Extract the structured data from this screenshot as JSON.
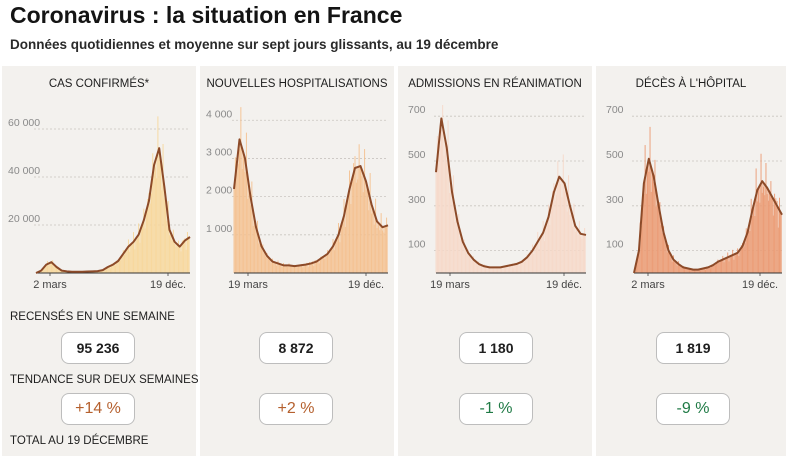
{
  "title": "Coronavirus : la situation en France",
  "subtitle": "Données quotidiennes et moyenne sur sept jours glissants, au 19 décembre",
  "row_labels": {
    "weekly": "RECENSÉS EN UNE SEMAINE",
    "trend": "TENDANCE SUR DEUX SEMAINES",
    "total": "TOTAL AU 19  DÉCEMBRE"
  },
  "colors": {
    "line": "#8c4a28",
    "up": "#b5602e",
    "down": "#1f7a45",
    "panel_bg": "#f3f1ee"
  },
  "panels": [
    {
      "title": "CAS CONFIRMÉS*",
      "weekly": "95 236",
      "trend": "+14 %",
      "trend_dir": "up"
    },
    {
      "title": "NOUVELLES HOSPITALISATIONS",
      "weekly": "8 872",
      "trend": "+2 %",
      "trend_dir": "up"
    },
    {
      "title": "ADMISSIONS EN RÉANIMATION",
      "weekly": "1 180",
      "trend": "-1 %",
      "trend_dir": "down"
    },
    {
      "title": "DÉCÈS À L'HÔPITAL",
      "weekly": "1 819",
      "trend": "-9 %",
      "trend_dir": "down"
    }
  ],
  "chart_data": [
    {
      "type": "area",
      "title": "CAS CONFIRMÉS*",
      "x_ticks": [
        "2 mars",
        "19 déc."
      ],
      "y_ticks": [
        "20 000",
        "40 000",
        "60 000"
      ],
      "ylim": [
        0,
        70000
      ],
      "fill_color": "#f7d79b",
      "series": [
        {
          "values": [
            0,
            1000,
            3500,
            4500,
            2500,
            1000,
            700,
            500,
            500,
            500,
            600,
            700,
            800,
            1200,
            2500,
            3500,
            5000,
            8000,
            11000,
            13000,
            16000,
            22000,
            30000,
            45000,
            52000,
            36000,
            18000,
            13000,
            11000,
            13500,
            15000
          ]
        }
      ]
    },
    {
      "type": "area",
      "title": "NOUVELLES HOSPITALISATIONS",
      "x_ticks": [
        "19 mars",
        "19 déc."
      ],
      "y_ticks": [
        "1 000",
        "2 000",
        "3 000",
        "4 000"
      ],
      "ylim": [
        0,
        4400
      ],
      "fill_color": "#f4c08e",
      "series": [
        {
          "values": [
            2200,
            3500,
            3000,
            2000,
            1200,
            700,
            450,
            300,
            250,
            200,
            200,
            180,
            200,
            220,
            250,
            300,
            400,
            500,
            700,
            1000,
            1500,
            2200,
            2750,
            2800,
            2400,
            1800,
            1350,
            1200,
            1250
          ]
        }
      ]
    },
    {
      "type": "area",
      "title": "ADMISSIONS EN RÉANIMATION",
      "x_ticks": [
        "19 mars",
        "19 déc."
      ],
      "y_ticks": [
        "100",
        "300",
        "500",
        "700"
      ],
      "ylim": [
        0,
        750
      ],
      "fill_color": "#f6d8c8",
      "series": [
        {
          "values": [
            450,
            690,
            560,
            360,
            230,
            140,
            90,
            60,
            40,
            30,
            25,
            25,
            25,
            30,
            35,
            40,
            50,
            70,
            100,
            140,
            180,
            250,
            360,
            430,
            400,
            300,
            210,
            175,
            170
          ]
        }
      ]
    },
    {
      "type": "area",
      "title": "DÉCÈS À L'HÔPITAL",
      "x_ticks": [
        "2 mars",
        "19 déc."
      ],
      "y_ticks": [
        "100",
        "300",
        "500",
        "700"
      ],
      "ylim": [
        0,
        750
      ],
      "fill_color": "#eb9a73",
      "series": [
        {
          "values": [
            0,
            100,
            400,
            510,
            430,
            300,
            180,
            100,
            60,
            40,
            25,
            20,
            15,
            15,
            20,
            25,
            35,
            50,
            60,
            70,
            80,
            90,
            120,
            180,
            280,
            370,
            410,
            380,
            340,
            300,
            260
          ]
        }
      ]
    }
  ]
}
